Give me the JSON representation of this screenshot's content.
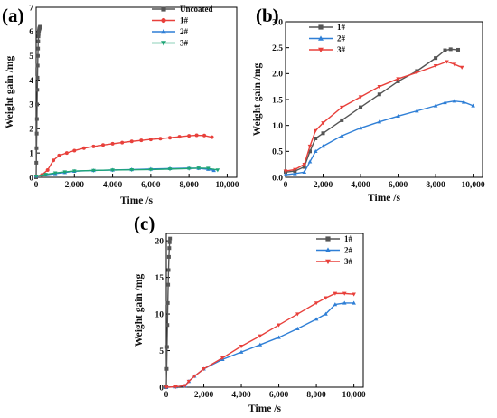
{
  "chart_data": [
    {
      "panel": "(a)",
      "type": "line",
      "xlabel": "Time /s",
      "ylabel": "Weight gain /mg",
      "xlim": [
        0,
        10500
      ],
      "ylim": [
        0,
        7
      ],
      "xticks": [
        0,
        2000,
        4000,
        6000,
        8000,
        10000
      ],
      "xtick_labels": [
        "0",
        "2,000",
        "4,000",
        "6,000",
        "8,000",
        "10,000"
      ],
      "yticks": [
        0,
        1,
        2,
        3,
        4,
        5,
        6,
        7
      ],
      "ytick_labels": [
        "0",
        "1",
        "2",
        "3",
        "4",
        "5",
        "6",
        "7"
      ],
      "legend_position": "top-right",
      "series": [
        {
          "name": "Uncoated",
          "color": "#555555",
          "marker": "square",
          "x": [
            0,
            10,
            20,
            30,
            40,
            50,
            60,
            70,
            80,
            90,
            100,
            110,
            120,
            130,
            140,
            150,
            160,
            170,
            180,
            190,
            200
          ],
          "y": [
            0,
            0.6,
            1.2,
            1.8,
            2.4,
            3.0,
            3.6,
            4.1,
            4.6,
            5.0,
            5.3,
            5.6,
            5.8,
            5.9,
            6.0,
            6.05,
            6.1,
            6.12,
            6.15,
            6.17,
            6.2
          ]
        },
        {
          "name": "1#",
          "color": "#e8403b",
          "marker": "circle",
          "x": [
            0,
            300,
            600,
            900,
            1200,
            1600,
            2000,
            2500,
            3000,
            3500,
            4000,
            4500,
            5000,
            5500,
            6000,
            6500,
            7000,
            7500,
            8000,
            8400,
            8800,
            9200
          ],
          "y": [
            0.05,
            0.1,
            0.3,
            0.7,
            0.9,
            1.0,
            1.1,
            1.2,
            1.27,
            1.33,
            1.38,
            1.43,
            1.48,
            1.52,
            1.56,
            1.59,
            1.63,
            1.67,
            1.71,
            1.73,
            1.72,
            1.65
          ]
        },
        {
          "name": "2#",
          "color": "#2f7fd6",
          "marker": "triangle-up",
          "x": [
            0,
            500,
            1000,
            1500,
            2000,
            3000,
            4000,
            5000,
            6000,
            7000,
            8000,
            8500,
            9000,
            9300
          ],
          "y": [
            0.05,
            0.1,
            0.15,
            0.2,
            0.25,
            0.28,
            0.3,
            0.32,
            0.34,
            0.36,
            0.38,
            0.37,
            0.33,
            0.28
          ]
        },
        {
          "name": "3#",
          "color": "#1ea576",
          "marker": "triangle-down",
          "x": [
            0,
            500,
            1000,
            1500,
            2000,
            3000,
            4000,
            5000,
            6000,
            7000,
            8000,
            8500,
            9000,
            9500
          ],
          "y": [
            0.05,
            0.12,
            0.18,
            0.22,
            0.26,
            0.28,
            0.3,
            0.31,
            0.32,
            0.34,
            0.36,
            0.38,
            0.37,
            0.3
          ]
        }
      ]
    },
    {
      "panel": "(b)",
      "type": "line",
      "xlabel": "Time /s",
      "ylabel": "Weight gain /mg",
      "xlim": [
        0,
        10500
      ],
      "ylim": [
        0,
        3
      ],
      "xticks": [
        0,
        2000,
        4000,
        6000,
        8000,
        10000
      ],
      "xtick_labels": [
        "0",
        "2,000",
        "4,000",
        "6,000",
        "8,000",
        "10,000"
      ],
      "yticks": [
        0,
        0.5,
        1.0,
        1.5,
        2.0,
        2.5,
        3.0
      ],
      "ytick_labels": [
        "0.0",
        "0.5",
        "1.0",
        "1.5",
        "2.0",
        "2.5",
        "3.0"
      ],
      "legend_position": "top-left",
      "series": [
        {
          "name": "1#",
          "color": "#555555",
          "marker": "square",
          "x": [
            0,
            500,
            1000,
            1300,
            1600,
            2000,
            3000,
            4000,
            5000,
            6000,
            7000,
            8000,
            8500,
            8800,
            9200
          ],
          "y": [
            0.1,
            0.12,
            0.2,
            0.5,
            0.75,
            0.85,
            1.1,
            1.35,
            1.6,
            1.85,
            2.05,
            2.3,
            2.45,
            2.47,
            2.46
          ]
        },
        {
          "name": "2#",
          "color": "#2f7fd6",
          "marker": "triangle-up",
          "x": [
            0,
            500,
            1000,
            1300,
            1600,
            2000,
            3000,
            4000,
            5000,
            6000,
            7000,
            8000,
            8500,
            9000,
            9500,
            10000
          ],
          "y": [
            0.05,
            0.07,
            0.1,
            0.3,
            0.5,
            0.6,
            0.8,
            0.95,
            1.07,
            1.18,
            1.28,
            1.38,
            1.44,
            1.47,
            1.45,
            1.38
          ]
        },
        {
          "name": "3#",
          "color": "#e8403b",
          "marker": "triangle-down",
          "x": [
            0,
            500,
            1000,
            1300,
            1600,
            2000,
            3000,
            4000,
            5000,
            6000,
            7000,
            8000,
            8600,
            9000,
            9400
          ],
          "y": [
            0.12,
            0.15,
            0.25,
            0.6,
            0.9,
            1.05,
            1.35,
            1.55,
            1.75,
            1.9,
            2.02,
            2.15,
            2.23,
            2.18,
            2.12
          ]
        }
      ]
    },
    {
      "panel": "(c)",
      "type": "line",
      "xlabel": "Time /s",
      "ylabel": "Weight gain /mg",
      "xlim": [
        0,
        10500
      ],
      "ylim": [
        0,
        21
      ],
      "xticks": [
        0,
        2000,
        4000,
        6000,
        8000,
        10000
      ],
      "xtick_labels": [
        "0",
        "2,000",
        "4,000",
        "6,000",
        "8,000",
        "10,000"
      ],
      "yticks": [
        0,
        5,
        10,
        15,
        20
      ],
      "ytick_labels": [
        "0",
        "5",
        "10",
        "15",
        "20"
      ],
      "legend_position": "top-right",
      "series": [
        {
          "name": "1#",
          "color": "#555555",
          "marker": "square",
          "x": [
            0,
            20,
            40,
            60,
            80,
            100,
            120,
            140,
            160,
            180,
            200
          ],
          "y": [
            0,
            2.5,
            5.5,
            8.5,
            11.5,
            14.0,
            16.0,
            17.8,
            19.0,
            19.8,
            20.3
          ]
        },
        {
          "name": "2#",
          "color": "#2f7fd6",
          "marker": "triangle-up",
          "x": [
            0,
            500,
            1000,
            1200,
            1500,
            2000,
            3000,
            4000,
            5000,
            6000,
            7000,
            8000,
            8500,
            9000,
            9500,
            10000
          ],
          "y": [
            0,
            0.05,
            0.2,
            0.8,
            1.5,
            2.5,
            3.8,
            4.8,
            5.8,
            6.8,
            8.0,
            9.3,
            10.0,
            11.3,
            11.5,
            11.5
          ]
        },
        {
          "name": "3#",
          "color": "#e8403b",
          "marker": "triangle-down",
          "x": [
            0,
            500,
            1000,
            1200,
            1500,
            2000,
            3000,
            4000,
            5000,
            6000,
            7000,
            8000,
            8500,
            9000,
            9500,
            10000
          ],
          "y": [
            0,
            0.05,
            0.2,
            0.8,
            1.5,
            2.5,
            4.0,
            5.6,
            7.0,
            8.5,
            10.0,
            11.5,
            12.2,
            12.8,
            12.8,
            12.7
          ]
        }
      ]
    }
  ]
}
